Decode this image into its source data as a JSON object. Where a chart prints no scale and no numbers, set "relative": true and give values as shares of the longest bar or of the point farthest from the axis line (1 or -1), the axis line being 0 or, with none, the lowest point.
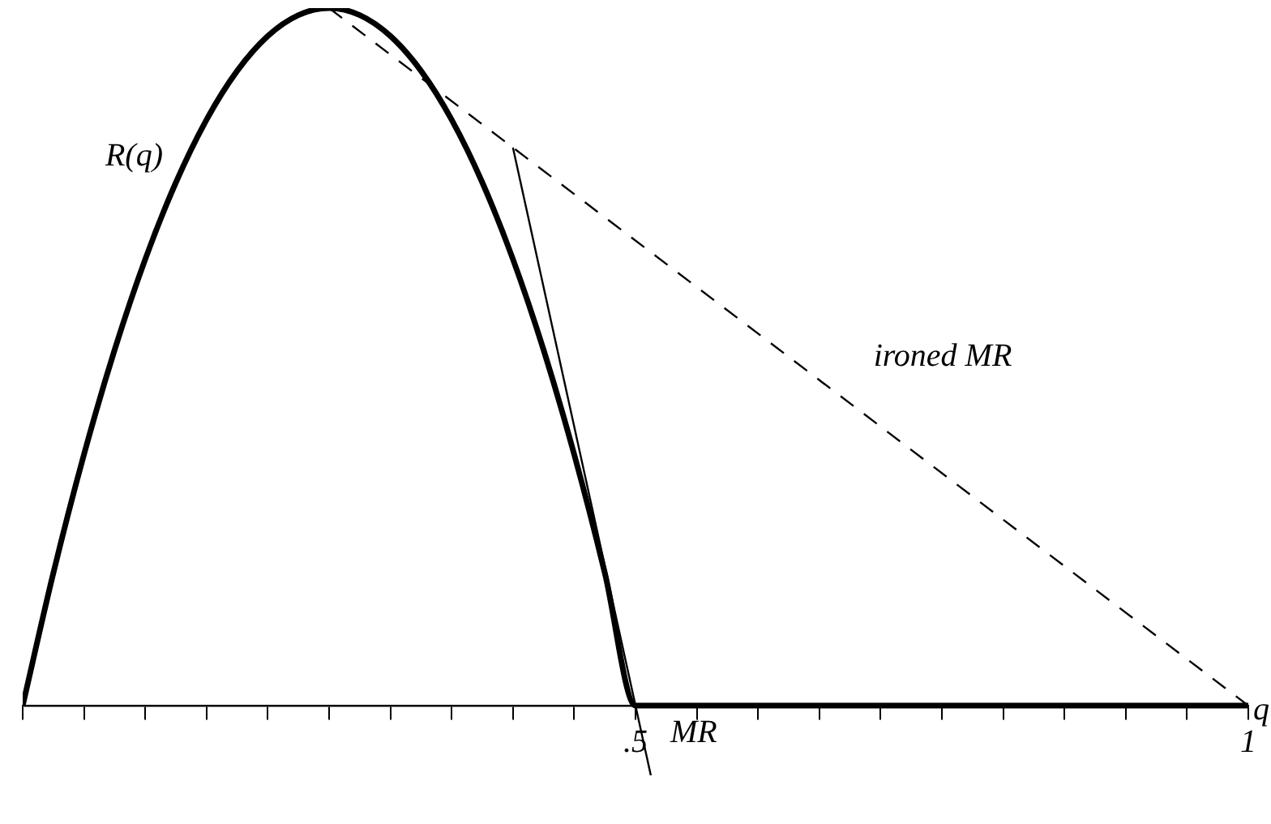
{
  "chart_data": {
    "type": "line",
    "relative": true,
    "xlabel": "q",
    "xlim": [
      0,
      1
    ],
    "xticks": [
      {
        "value": 0,
        "label": null
      },
      {
        "value": 0.05,
        "label": null
      },
      {
        "value": 0.1,
        "label": null
      },
      {
        "value": 0.15,
        "label": null
      },
      {
        "value": 0.2,
        "label": null
      },
      {
        "value": 0.25,
        "label": null
      },
      {
        "value": 0.3,
        "label": null
      },
      {
        "value": 0.35,
        "label": null
      },
      {
        "value": 0.4,
        "label": null
      },
      {
        "value": 0.45,
        "label": null
      },
      {
        "value": 0.5,
        "label": ".5"
      },
      {
        "value": 0.55,
        "label": null
      },
      {
        "value": 0.6,
        "label": null
      },
      {
        "value": 0.65,
        "label": null
      },
      {
        "value": 0.7,
        "label": null
      },
      {
        "value": 0.75,
        "label": null
      },
      {
        "value": 0.8,
        "label": null
      },
      {
        "value": 0.85,
        "label": null
      },
      {
        "value": 0.9,
        "label": null
      },
      {
        "value": 0.95,
        "label": null
      },
      {
        "value": 1,
        "label": "1"
      }
    ],
    "legend": false,
    "grid": false,
    "marker": "none",
    "series": [
      {
        "name": "R(q)",
        "color": "#000000",
        "x": [
          0,
          0.025,
          0.05,
          0.075,
          0.1,
          0.125,
          0.15,
          0.175,
          0.2,
          0.225,
          0.25,
          0.275,
          0.3,
          0.325,
          0.35,
          0.375,
          0.4,
          0.425,
          0.45,
          0.475,
          0.5,
          1
        ],
        "values": [
          0,
          0.19,
          0.36,
          0.51,
          0.64,
          0.75,
          0.84,
          0.91,
          0.96,
          0.99,
          1,
          0.99,
          0.96,
          0.91,
          0.84,
          0.75,
          0.64,
          0.51,
          0.36,
          0.19,
          0,
          0
        ]
      },
      {
        "name": "MR",
        "color": "#000000",
        "x": [
          0.4,
          0.5125
        ],
        "values": [
          0.8,
          -0.1
        ]
      },
      {
        "name": "ironed MR",
        "color": "#000000",
        "line_style": "dashed",
        "x": [
          0.25,
          1
        ],
        "values": [
          1,
          0
        ]
      }
    ]
  }
}
